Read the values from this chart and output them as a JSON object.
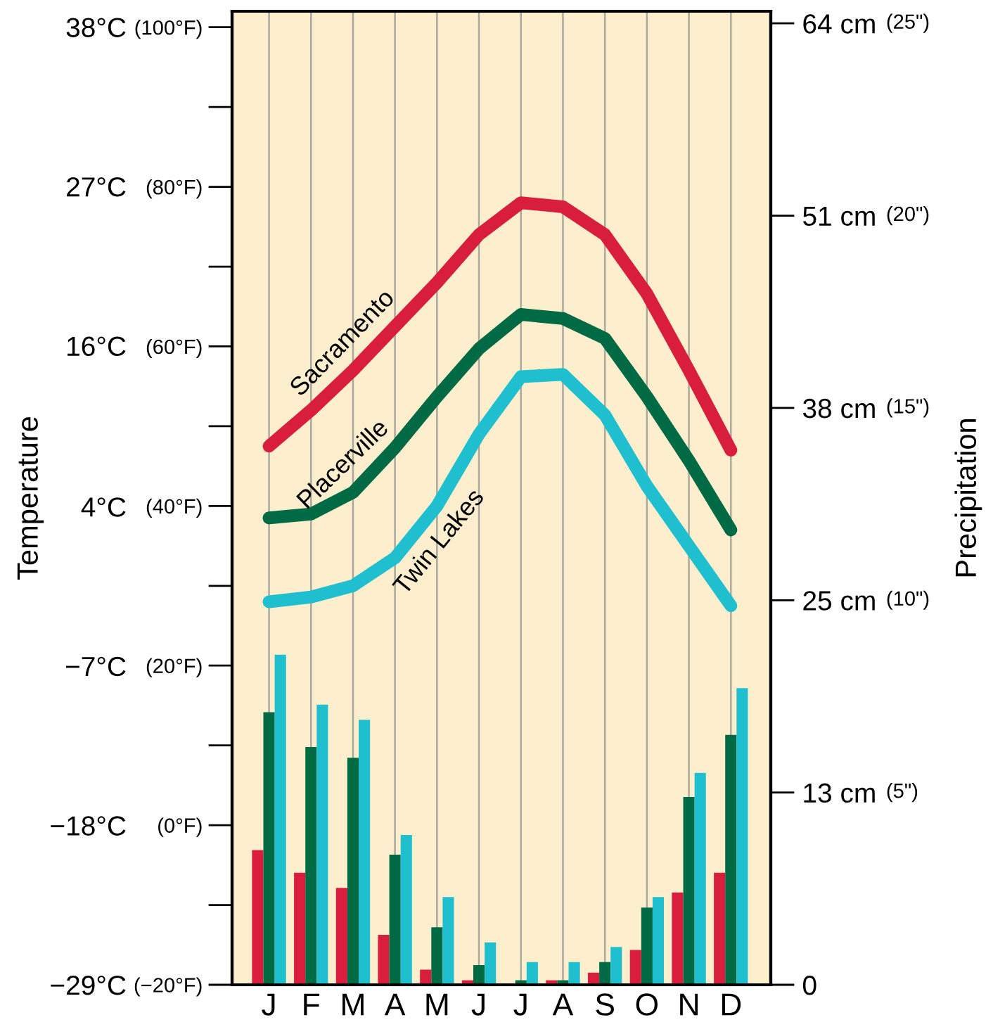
{
  "chart_data": {
    "type": "bar",
    "categories": [
      "J",
      "F",
      "M",
      "A",
      "M",
      "J",
      "J",
      "A",
      "S",
      "O",
      "N",
      "D"
    ],
    "ylabel": "Temperature",
    "y2label": "Precipitation",
    "ylim": [
      -20,
      102
    ],
    "yticks": [
      {
        "value": -20,
        "label": "(−20°F)"
      },
      {
        "value": 0,
        "label": "(0°F)"
      },
      {
        "value": 20,
        "label": "(20°F)"
      },
      {
        "value": 40,
        "label": "(40°F)"
      },
      {
        "value": 60,
        "label": "(60°F)"
      },
      {
        "value": 80,
        "label": "(80°F)"
      },
      {
        "value": 100,
        "label": "(100°F)"
      }
    ],
    "y3lim": [
      -28.9,
      38.9
    ],
    "y3ticks": [
      {
        "value": -28.9,
        "label": "−29°C"
      },
      {
        "value": -17.8,
        "label": "−18°C"
      },
      {
        "value": -6.7,
        "label": "−7°C"
      },
      {
        "value": 4.4,
        "label": "4°C"
      },
      {
        "value": 15.6,
        "label": "16°C"
      },
      {
        "value": 26.7,
        "label": "27°C"
      },
      {
        "value": 37.8,
        "label": "38°C"
      }
    ],
    "y2lim": [
      0,
      64.3
    ],
    "y2ticks": [
      0,
      {
        "value": 12.7,
        "label": "13 cm"
      },
      {
        "value": 25.4,
        "label": "25 cm"
      },
      {
        "value": 38.1,
        "label": "38 cm"
      },
      {
        "value": 50.8,
        "label": "51 cm"
      },
      {
        "value": 63.5,
        "label": "64 cm"
      }
    ],
    "annotations": [
      "(5\")",
      "(10\")",
      "(15\")",
      "(20\")",
      "(25\")"
    ],
    "grid": "x",
    "legend": false,
    "series": [
      {
        "axis": "y2",
        "color": "#d81e3c",
        "values": [
          8.9,
          7.4,
          6.4,
          3.3,
          1.0,
          0.3,
          0,
          0.3,
          0.8,
          2.3,
          6.1,
          7.4
        ]
      },
      {
        "axis": "y2",
        "color": "#006a44",
        "values": [
          18.0,
          15.7,
          15.0,
          8.6,
          3.8,
          1.3,
          0.3,
          0.3,
          1.5,
          5.1,
          12.4,
          16.5
        ]
      },
      {
        "axis": "y2",
        "color": "#1fbfd0",
        "values": [
          21.8,
          18.5,
          17.5,
          9.9,
          5.8,
          2.8,
          1.5,
          1.5,
          2.5,
          5.8,
          14.0,
          19.6
        ]
      },
      {
        "type": "line",
        "axis": "y",
        "name": "Sacramento",
        "color": "#d81e3c",
        "values": [
          47.5,
          52,
          57,
          62.5,
          68,
          74,
          78,
          77.5,
          74,
          66.6,
          57,
          47
        ]
      },
      {
        "type": "line",
        "axis": "y",
        "name": "Placerville",
        "color": "#006a44",
        "values": [
          38.5,
          39,
          41.7,
          47.3,
          53.7,
          59.7,
          64,
          63.5,
          61,
          53.7,
          45.7,
          37
        ]
      },
      {
        "type": "line",
        "axis": "y",
        "name": "Twin Lakes",
        "color": "#1fbfd0",
        "values": [
          28,
          28.6,
          30,
          33.5,
          40,
          49,
          56.2,
          56.5,
          51.4,
          42.5,
          35,
          27.5
        ]
      }
    ]
  }
}
